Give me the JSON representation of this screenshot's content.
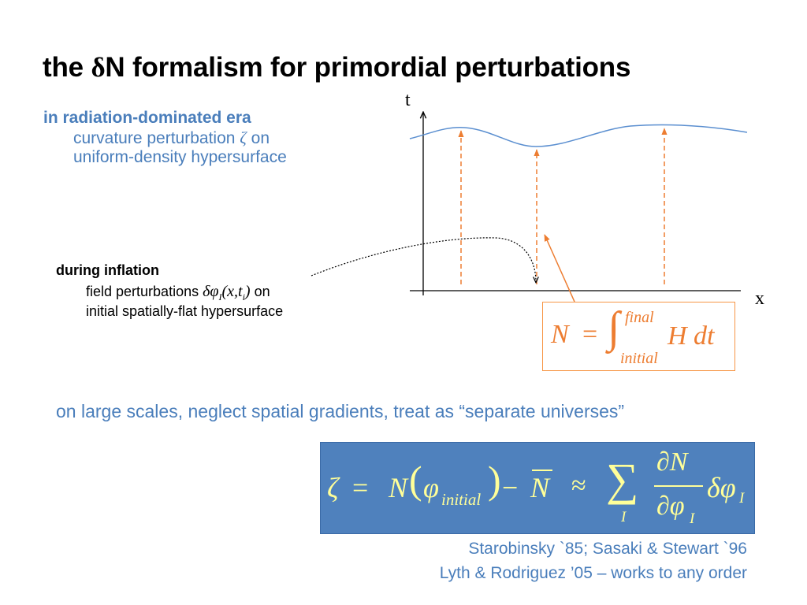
{
  "title": {
    "prefix": "the ",
    "delta": "δ",
    "rest": "N formalism for primordial perturbations"
  },
  "radiation": {
    "heading": "in radiation-dominated era",
    "line1_text": "curvature perturbation ",
    "line1_symbol": "ζ",
    "line1_end": " on",
    "line2": "uniform-density hypersurface"
  },
  "inflation": {
    "heading": "during inflation",
    "line1_text": "field perturbations ",
    "line1_symbol_delta_phi": "δφ",
    "line1_symbol_sub": "I",
    "line1_symbol_args": "(x,t",
    "line1_symbol_args_sub": "i",
    "line1_symbol_close": ")",
    "line1_end": " on",
    "line2": "initial spatially-flat hypersurface"
  },
  "diagram": {
    "t_label": "t",
    "x_label": "x"
  },
  "n_formula": {
    "lhs": "N",
    "eq": "=",
    "int": "∫",
    "upper": "final",
    "lower": "initial",
    "integrand": "H dt"
  },
  "large_scales": "on large scales, neglect spatial gradients, treat as “separate universes”",
  "zeta_formula": {
    "zeta": "ζ",
    "eq": "=",
    "N": "N",
    "lparen": "(",
    "phi": "φ",
    "phi_sub": "initial",
    "rparen": ")",
    "minus": "−",
    "Nbar": "N",
    "approx": "≈",
    "sum": "∑",
    "sum_sub": "I",
    "num": "∂N",
    "den": "∂φ",
    "den_sub": "I",
    "dphi": "δφ",
    "dphi_sub": "I"
  },
  "references": {
    "line1": "Starobinsky `85; Sasaki & Stewart `96",
    "line2": "Lyth & Rodriguez ’05 – works to any order"
  },
  "colors": {
    "blue_text": "#4a7ebb",
    "box_fill": "#4f81bd",
    "formula_text": "#ffff99",
    "orange": "#ed7d31",
    "curve": "#5b8fd0"
  }
}
